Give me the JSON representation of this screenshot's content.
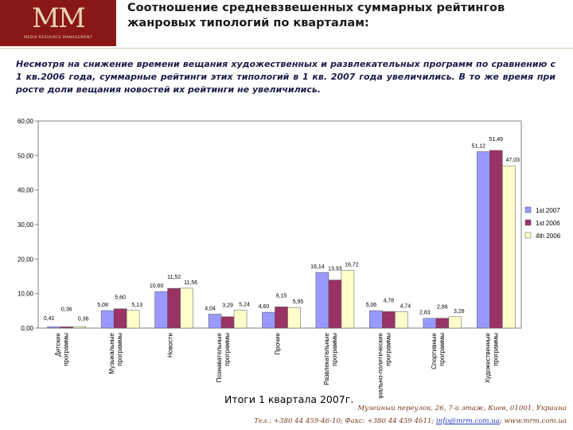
{
  "logo": {
    "mark": "MM",
    "subtitle": "MEDIA RESOURCE MANAGEMENT"
  },
  "title": "Соотношение средневзвешенных суммарных рейтингов жанровых типологий по кварталам:",
  "intro": "Несмотря на снижение времени вещания  художественных  и развлекательных программ по сравнению с 1 кв.2006 года, суммарные рейтинги этих типологий в 1 кв. 2007 года увеличились.  В то же время при росте доли вещания новостей их рейтинги не увеличились.",
  "caption": "Итоги 1 квартала 2007г.",
  "footer": {
    "address": "Музейный переулок, 26, 7-й этаж, Киев, 01001, Украина",
    "phone_fax": "Тел.: +380 44 459-46-10; Факс: +380 44 459 4611;",
    "email": "info@mrm.com.ua",
    "site": "; www.mrm.com.ua"
  },
  "chart_data": {
    "type": "bar",
    "categories": [
      "Детские программы",
      "Музыкальные программы",
      "Новости",
      "Познавательные программы",
      "Прочие",
      "Развлекательные программы",
      "Социально-политические программы",
      "Спортивные программы",
      "Художественные программы"
    ],
    "series": [
      {
        "name": "1st 2007",
        "color": "#9999ff",
        "values": [
          0.41,
          5.08,
          10.6,
          4.04,
          4.6,
          16.14,
          5.06,
          2.83,
          51.12
        ]
      },
      {
        "name": "1st 2006",
        "color": "#993366",
        "values": [
          0.36,
          5.6,
          11.52,
          3.29,
          6.15,
          13.93,
          4.78,
          2.86,
          51.49
        ]
      },
      {
        "name": "4th 2006",
        "color": "#ffffcc",
        "values": [
          0.36,
          5.13,
          11.56,
          5.24,
          5.95,
          16.72,
          4.74,
          3.28,
          47.03
        ]
      }
    ],
    "data_labels": [
      [
        "0,41",
        "5,08",
        "10,60",
        "4,04",
        "4,60",
        "16,14",
        "5,06",
        "2,83",
        "51,12"
      ],
      [
        "0,36",
        "5,60",
        "11,52",
        "3,29",
        "6,15",
        "13,93",
        "4,78",
        "2,86",
        "51,49"
      ],
      [
        "0,36",
        "5,13",
        "11,56",
        "5,24",
        "5,95",
        "16,72",
        "4,74",
        "3,28",
        "47,03"
      ]
    ],
    "y_ticks": [
      "0,00",
      "10,00",
      "20,00",
      "30,00",
      "40,00",
      "50,00",
      "60,00"
    ],
    "ylim": [
      0,
      60
    ],
    "legend_position": "right",
    "grid": false
  }
}
